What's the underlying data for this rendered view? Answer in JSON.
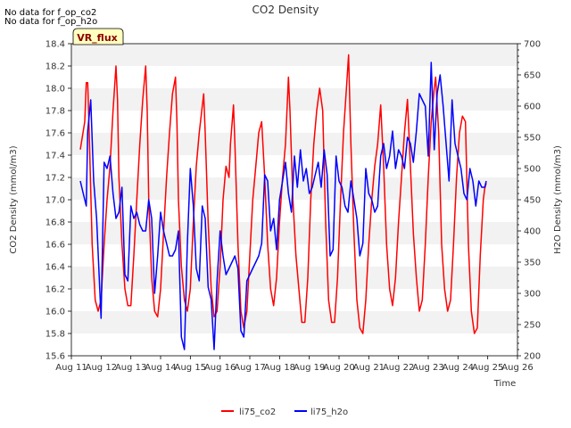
{
  "notes": [
    "No data for f_op_co2",
    "No data for f_op_h2o"
  ],
  "chart_data": {
    "type": "line",
    "title": "CO2 Density",
    "xlabel": "Time",
    "ylabel_left": "CO2 Density (mmol/m3)",
    "ylabel_right": "H2O Density (mmol/m3)",
    "x_ticks": [
      "Aug 11",
      "Aug 12",
      "Aug 13",
      "Aug 14",
      "Aug 15",
      "Aug 16",
      "Aug 17",
      "Aug 18",
      "Aug 19",
      "Aug 20",
      "Aug 21",
      "Aug 22",
      "Aug 23",
      "Aug 24",
      "Aug 25",
      "Aug 26"
    ],
    "xlim": [
      11,
      26
    ],
    "ylim_left": [
      15.6,
      18.4
    ],
    "yticks_left": [
      "15.6",
      "15.8",
      "16.0",
      "16.2",
      "16.4",
      "16.6",
      "16.8",
      "17.0",
      "17.2",
      "17.4",
      "17.6",
      "17.8",
      "18.0",
      "18.2",
      "18.4"
    ],
    "ylim_right": [
      200,
      700
    ],
    "yticks_right": [
      "200",
      "250",
      "300",
      "350",
      "400",
      "450",
      "500",
      "550",
      "600",
      "650",
      "700"
    ],
    "legend_position": "bottom-center",
    "annotation": "VR_flux",
    "series": [
      {
        "name": "li75_co2",
        "axis": "left",
        "color": "#ff0000",
        "points": [
          [
            11.3,
            17.45
          ],
          [
            11.45,
            17.7
          ],
          [
            11.5,
            18.05
          ],
          [
            11.55,
            18.05
          ],
          [
            11.6,
            17.6
          ],
          [
            11.7,
            16.6
          ],
          [
            11.8,
            16.1
          ],
          [
            11.9,
            16.0
          ],
          [
            12.0,
            16.1
          ],
          [
            12.1,
            16.6
          ],
          [
            12.2,
            17.0
          ],
          [
            12.3,
            17.3
          ],
          [
            12.4,
            17.8
          ],
          [
            12.5,
            18.2
          ],
          [
            12.55,
            17.9
          ],
          [
            12.6,
            17.2
          ],
          [
            12.7,
            16.6
          ],
          [
            12.8,
            16.2
          ],
          [
            12.9,
            16.05
          ],
          [
            13.0,
            16.05
          ],
          [
            13.1,
            16.5
          ],
          [
            13.2,
            17.0
          ],
          [
            13.3,
            17.5
          ],
          [
            13.4,
            17.9
          ],
          [
            13.5,
            18.2
          ],
          [
            13.55,
            17.8
          ],
          [
            13.6,
            17.0
          ],
          [
            13.7,
            16.3
          ],
          [
            13.8,
            16.0
          ],
          [
            13.9,
            15.95
          ],
          [
            14.0,
            16.2
          ],
          [
            14.1,
            16.7
          ],
          [
            14.2,
            17.2
          ],
          [
            14.3,
            17.6
          ],
          [
            14.4,
            17.95
          ],
          [
            14.5,
            18.1
          ],
          [
            14.55,
            17.7
          ],
          [
            14.6,
            17.0
          ],
          [
            14.7,
            16.4
          ],
          [
            14.8,
            16.1
          ],
          [
            14.9,
            16.0
          ],
          [
            15.0,
            16.2
          ],
          [
            15.1,
            16.8
          ],
          [
            15.2,
            17.3
          ],
          [
            15.3,
            17.6
          ],
          [
            15.45,
            17.95
          ],
          [
            15.5,
            17.6
          ],
          [
            15.6,
            16.8
          ],
          [
            15.7,
            16.2
          ],
          [
            15.8,
            15.95
          ],
          [
            15.9,
            16.0
          ],
          [
            16.0,
            16.4
          ],
          [
            16.1,
            17.0
          ],
          [
            16.2,
            17.3
          ],
          [
            16.3,
            17.2
          ],
          [
            16.35,
            17.5
          ],
          [
            16.45,
            17.85
          ],
          [
            16.5,
            17.5
          ],
          [
            16.6,
            16.6
          ],
          [
            16.7,
            16.0
          ],
          [
            16.8,
            15.85
          ],
          [
            16.9,
            16.0
          ],
          [
            17.0,
            16.5
          ],
          [
            17.1,
            17.0
          ],
          [
            17.2,
            17.3
          ],
          [
            17.3,
            17.6
          ],
          [
            17.4,
            17.7
          ],
          [
            17.5,
            17.2
          ],
          [
            17.6,
            16.6
          ],
          [
            17.7,
            16.2
          ],
          [
            17.8,
            16.05
          ],
          [
            17.9,
            16.3
          ],
          [
            18.0,
            16.8
          ],
          [
            18.1,
            17.2
          ],
          [
            18.2,
            17.5
          ],
          [
            18.3,
            18.1
          ],
          [
            18.35,
            17.8
          ],
          [
            18.45,
            17.0
          ],
          [
            18.55,
            16.5
          ],
          [
            18.65,
            16.2
          ],
          [
            18.75,
            15.9
          ],
          [
            18.85,
            15.9
          ],
          [
            18.95,
            16.3
          ],
          [
            19.05,
            17.0
          ],
          [
            19.15,
            17.5
          ],
          [
            19.25,
            17.8
          ],
          [
            19.35,
            18.0
          ],
          [
            19.45,
            17.8
          ],
          [
            19.55,
            16.8
          ],
          [
            19.65,
            16.1
          ],
          [
            19.75,
            15.9
          ],
          [
            19.85,
            15.9
          ],
          [
            19.95,
            16.3
          ],
          [
            20.05,
            17.0
          ],
          [
            20.15,
            17.6
          ],
          [
            20.25,
            18.0
          ],
          [
            20.32,
            18.3
          ],
          [
            20.4,
            17.5
          ],
          [
            20.5,
            16.7
          ],
          [
            20.6,
            16.1
          ],
          [
            20.7,
            15.85
          ],
          [
            20.8,
            15.8
          ],
          [
            20.9,
            16.1
          ],
          [
            21.0,
            16.6
          ],
          [
            21.1,
            17.0
          ],
          [
            21.2,
            17.3
          ],
          [
            21.3,
            17.5
          ],
          [
            21.4,
            17.85
          ],
          [
            21.5,
            17.3
          ],
          [
            21.6,
            16.6
          ],
          [
            21.7,
            16.2
          ],
          [
            21.8,
            16.05
          ],
          [
            21.9,
            16.3
          ],
          [
            22.0,
            16.8
          ],
          [
            22.1,
            17.2
          ],
          [
            22.2,
            17.6
          ],
          [
            22.3,
            17.9
          ],
          [
            22.4,
            17.3
          ],
          [
            22.5,
            16.7
          ],
          [
            22.6,
            16.3
          ],
          [
            22.7,
            16.0
          ],
          [
            22.8,
            16.1
          ],
          [
            22.9,
            16.6
          ],
          [
            23.0,
            17.2
          ],
          [
            23.1,
            17.7
          ],
          [
            23.2,
            18.0
          ],
          [
            23.25,
            18.1
          ],
          [
            23.35,
            17.6
          ],
          [
            23.45,
            16.6
          ],
          [
            23.55,
            16.2
          ],
          [
            23.65,
            16.0
          ],
          [
            23.75,
            16.1
          ],
          [
            23.85,
            16.6
          ],
          [
            23.95,
            17.2
          ],
          [
            24.05,
            17.6
          ],
          [
            24.15,
            17.75
          ],
          [
            24.25,
            17.7
          ],
          [
            24.35,
            16.6
          ],
          [
            24.45,
            16.0
          ],
          [
            24.55,
            15.8
          ],
          [
            24.65,
            15.85
          ],
          [
            24.75,
            16.5
          ],
          [
            24.85,
            17.0
          ],
          [
            24.9,
            17.1
          ],
          [
            24.95,
            17.15
          ]
        ]
      },
      {
        "name": "li75_h2o",
        "axis": "right",
        "color": "#0000ff",
        "points": [
          [
            11.3,
            480
          ],
          [
            11.4,
            460
          ],
          [
            11.5,
            440
          ],
          [
            11.55,
            560
          ],
          [
            11.65,
            610
          ],
          [
            11.75,
            480
          ],
          [
            11.85,
            420
          ],
          [
            11.95,
            310
          ],
          [
            12.0,
            260
          ],
          [
            12.1,
            510
          ],
          [
            12.2,
            500
          ],
          [
            12.3,
            520
          ],
          [
            12.4,
            460
          ],
          [
            12.5,
            420
          ],
          [
            12.6,
            430
          ],
          [
            12.7,
            470
          ],
          [
            12.8,
            330
          ],
          [
            12.9,
            320
          ],
          [
            13.0,
            440
          ],
          [
            13.1,
            420
          ],
          [
            13.2,
            430
          ],
          [
            13.3,
            410
          ],
          [
            13.4,
            400
          ],
          [
            13.5,
            400
          ],
          [
            13.6,
            450
          ],
          [
            13.7,
            420
          ],
          [
            13.8,
            300
          ],
          [
            13.9,
            360
          ],
          [
            14.0,
            430
          ],
          [
            14.1,
            400
          ],
          [
            14.2,
            380
          ],
          [
            14.3,
            360
          ],
          [
            14.4,
            360
          ],
          [
            14.5,
            370
          ],
          [
            14.6,
            400
          ],
          [
            14.7,
            230
          ],
          [
            14.8,
            210
          ],
          [
            14.85,
            290
          ],
          [
            14.9,
            380
          ],
          [
            15.0,
            500
          ],
          [
            15.1,
            440
          ],
          [
            15.2,
            340
          ],
          [
            15.3,
            320
          ],
          [
            15.4,
            440
          ],
          [
            15.5,
            420
          ],
          [
            15.6,
            310
          ],
          [
            15.7,
            290
          ],
          [
            15.8,
            210
          ],
          [
            15.9,
            320
          ],
          [
            16.0,
            400
          ],
          [
            16.1,
            360
          ],
          [
            16.2,
            330
          ],
          [
            16.3,
            340
          ],
          [
            16.4,
            350
          ],
          [
            16.5,
            360
          ],
          [
            16.6,
            340
          ],
          [
            16.7,
            240
          ],
          [
            16.8,
            230
          ],
          [
            16.9,
            320
          ],
          [
            17.0,
            330
          ],
          [
            17.1,
            340
          ],
          [
            17.2,
            350
          ],
          [
            17.3,
            360
          ],
          [
            17.4,
            380
          ],
          [
            17.5,
            490
          ],
          [
            17.6,
            480
          ],
          [
            17.7,
            400
          ],
          [
            17.8,
            420
          ],
          [
            17.9,
            370
          ],
          [
            18.0,
            450
          ],
          [
            18.1,
            480
          ],
          [
            18.2,
            510
          ],
          [
            18.3,
            460
          ],
          [
            18.4,
            430
          ],
          [
            18.5,
            520
          ],
          [
            18.6,
            470
          ],
          [
            18.7,
            530
          ],
          [
            18.8,
            480
          ],
          [
            18.9,
            500
          ],
          [
            19.0,
            460
          ],
          [
            19.1,
            470
          ],
          [
            19.2,
            490
          ],
          [
            19.3,
            510
          ],
          [
            19.4,
            470
          ],
          [
            19.5,
            530
          ],
          [
            19.6,
            490
          ],
          [
            19.7,
            360
          ],
          [
            19.8,
            370
          ],
          [
            19.9,
            520
          ],
          [
            20.0,
            480
          ],
          [
            20.1,
            470
          ],
          [
            20.2,
            440
          ],
          [
            20.3,
            430
          ],
          [
            20.4,
            480
          ],
          [
            20.5,
            450
          ],
          [
            20.6,
            420
          ],
          [
            20.7,
            360
          ],
          [
            20.8,
            380
          ],
          [
            20.9,
            500
          ],
          [
            21.0,
            460
          ],
          [
            21.1,
            450
          ],
          [
            21.2,
            430
          ],
          [
            21.3,
            440
          ],
          [
            21.4,
            520
          ],
          [
            21.5,
            540
          ],
          [
            21.6,
            500
          ],
          [
            21.7,
            520
          ],
          [
            21.8,
            560
          ],
          [
            21.9,
            500
          ],
          [
            22.0,
            530
          ],
          [
            22.1,
            520
          ],
          [
            22.2,
            500
          ],
          [
            22.3,
            550
          ],
          [
            22.4,
            540
          ],
          [
            22.5,
            510
          ],
          [
            22.6,
            560
          ],
          [
            22.7,
            620
          ],
          [
            22.8,
            610
          ],
          [
            22.9,
            600
          ],
          [
            23.0,
            520
          ],
          [
            23.1,
            670
          ],
          [
            23.2,
            530
          ],
          [
            23.3,
            620
          ],
          [
            23.4,
            650
          ],
          [
            23.5,
            600
          ],
          [
            23.6,
            540
          ],
          [
            23.7,
            480
          ],
          [
            23.8,
            610
          ],
          [
            23.9,
            540
          ],
          [
            24.0,
            520
          ],
          [
            24.1,
            500
          ],
          [
            24.2,
            460
          ],
          [
            24.3,
            450
          ],
          [
            24.4,
            500
          ],
          [
            24.5,
            480
          ],
          [
            24.6,
            440
          ],
          [
            24.7,
            480
          ],
          [
            24.8,
            470
          ],
          [
            24.9,
            470
          ],
          [
            24.95,
            480
          ]
        ]
      }
    ]
  }
}
